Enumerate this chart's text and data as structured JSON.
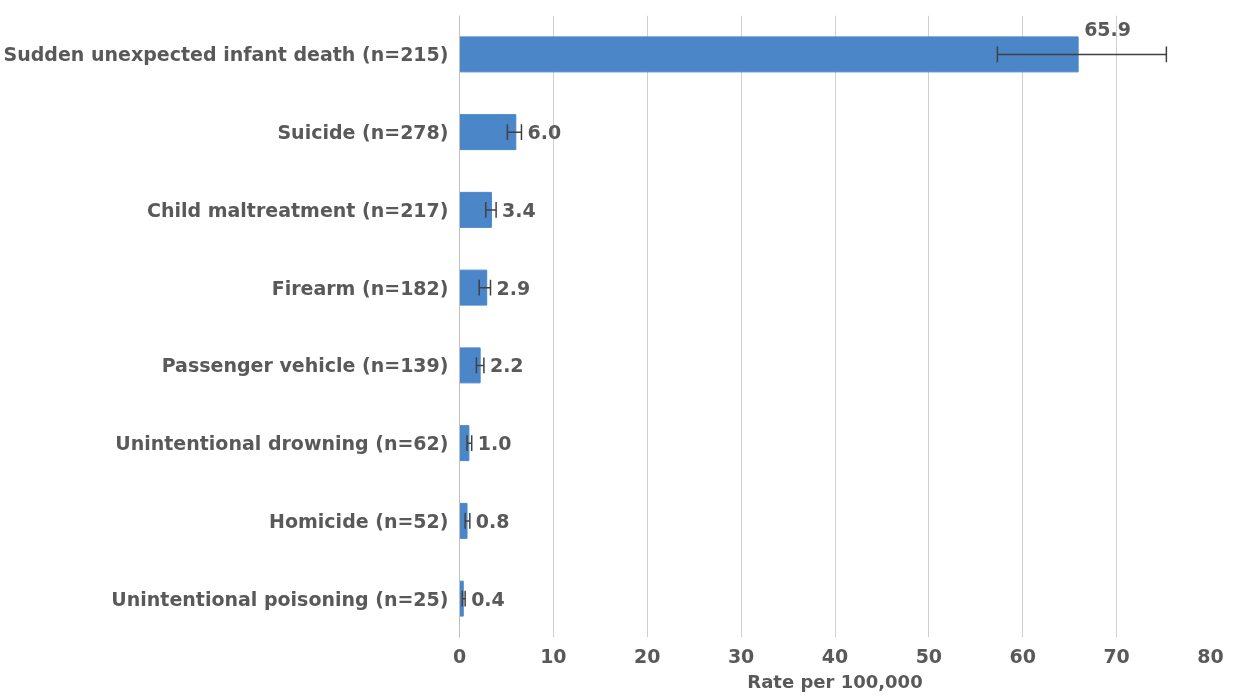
{
  "chart_data": {
    "type": "bar",
    "orientation": "horizontal",
    "xlabel": "Rate per 100,000",
    "categories": [
      "Sudden unexpected infant death (n=215)",
      "Suicide (n=278)",
      "Child maltreatment (n=217)",
      "Firearm (n=182)",
      "Passenger vehicle (n=139)",
      "Unintentional drowning (n=62)",
      "Homicide (n=52)",
      "Unintentional poisoning (n=25)"
    ],
    "values": [
      65.9,
      6.0,
      3.4,
      2.9,
      2.2,
      1.0,
      0.8,
      0.4
    ],
    "errors": [
      [
        57.3,
        75.3
      ],
      [
        5.1,
        6.6
      ],
      [
        2.8,
        3.9
      ],
      [
        2.1,
        3.3
      ],
      [
        1.8,
        2.6
      ],
      [
        0.8,
        1.3
      ],
      [
        0.6,
        1.1
      ],
      [
        0.3,
        0.6
      ]
    ],
    "value_labels": [
      "65.9",
      "6.0",
      "3.4",
      "2.9",
      "2.2",
      "1.0",
      "0.8",
      "0.4"
    ],
    "color": "#4a86c8",
    "xlim": [
      0,
      80
    ],
    "xticks": [
      0,
      10,
      20,
      30,
      40,
      50,
      60,
      70,
      80
    ],
    "grid": "x"
  }
}
